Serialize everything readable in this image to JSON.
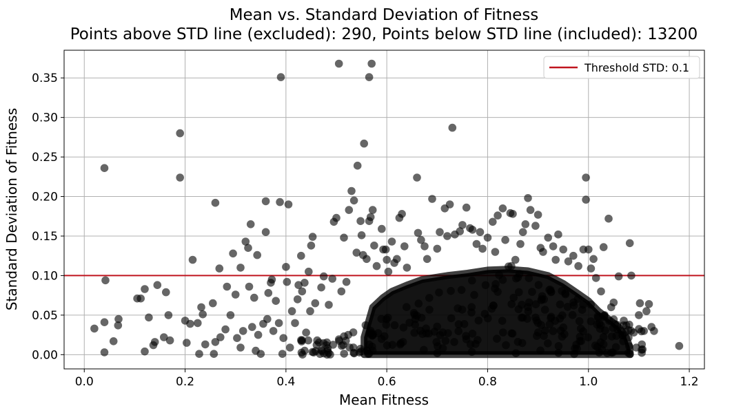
{
  "chart_data": {
    "type": "scatter",
    "title": "Mean vs. Standard Deviation of Fitness",
    "subtitle": "Points above STD line (excluded): 290, Points below STD line (included): 13200",
    "xlabel": "Mean Fitness",
    "ylabel": "Standard Deviation of Fitness",
    "xlim": [
      -0.04,
      1.23
    ],
    "ylim": [
      -0.018,
      0.385
    ],
    "x_ticks": [
      "0.0",
      "0.2",
      "0.4",
      "0.6",
      "0.8",
      "1.0",
      "1.2"
    ],
    "x_tick_values": [
      0.0,
      0.2,
      0.4,
      0.6,
      0.8,
      1.0,
      1.2
    ],
    "y_ticks": [
      "0.00",
      "0.05",
      "0.10",
      "0.15",
      "0.20",
      "0.25",
      "0.30",
      "0.35"
    ],
    "y_tick_values": [
      0.0,
      0.05,
      0.1,
      0.15,
      0.2,
      0.25,
      0.3,
      0.35
    ],
    "grid": true,
    "legend_position": "top-right",
    "threshold": {
      "label": "Threshold STD: 0.1",
      "value": 0.1,
      "color": "#c0141e"
    },
    "marker_color": "#000000",
    "marker_opacity": 0.6,
    "series": [
      {
        "points": [
          [
            0.02,
            0.033
          ],
          [
            0.04,
            0.003
          ],
          [
            0.04,
            0.041
          ],
          [
            0.042,
            0.094
          ],
          [
            0.04,
            0.236
          ],
          [
            0.058,
            0.017
          ],
          [
            0.067,
            0.037
          ],
          [
            0.068,
            0.045
          ],
          [
            0.105,
            0.071
          ],
          [
            0.112,
            0.071
          ],
          [
            0.12,
            0.083
          ],
          [
            0.12,
            0.004
          ],
          [
            0.128,
            0.047
          ],
          [
            0.137,
            0.012
          ],
          [
            0.14,
            0.016
          ],
          [
            0.145,
            0.088
          ],
          [
            0.158,
            0.022
          ],
          [
            0.162,
            0.079
          ],
          [
            0.167,
            0.05
          ],
          [
            0.17,
            0.018
          ],
          [
            0.19,
            0.224
          ],
          [
            0.19,
            0.28
          ],
          [
            0.2,
            0.043
          ],
          [
            0.203,
            0.015
          ],
          [
            0.21,
            0.039
          ],
          [
            0.215,
            0.12
          ],
          [
            0.225,
            0.04
          ],
          [
            0.228,
            0.001
          ],
          [
            0.232,
            0.06
          ],
          [
            0.235,
            0.051
          ],
          [
            0.24,
            0.013
          ],
          [
            0.255,
            0.065
          ],
          [
            0.257,
            0.001
          ],
          [
            0.26,
            0.192
          ],
          [
            0.26,
            0.016
          ],
          [
            0.268,
            0.109
          ],
          [
            0.27,
            0.022
          ],
          [
            0.28,
            0.032
          ],
          [
            0.283,
            0.086
          ],
          [
            0.29,
            0.05
          ],
          [
            0.295,
            0.128
          ],
          [
            0.3,
            0.076
          ],
          [
            0.303,
            0.021
          ],
          [
            0.31,
            0.009
          ],
          [
            0.31,
            0.11
          ],
          [
            0.315,
            0.03
          ],
          [
            0.32,
            0.143
          ],
          [
            0.325,
            0.135
          ],
          [
            0.327,
            0.086
          ],
          [
            0.33,
            0.165
          ],
          [
            0.333,
            0.035
          ],
          [
            0.337,
            0.072
          ],
          [
            0.34,
            0.005
          ],
          [
            0.343,
            0.126
          ],
          [
            0.345,
            0.025
          ],
          [
            0.35,
            0.001
          ],
          [
            0.355,
            0.039
          ],
          [
            0.36,
            0.194
          ],
          [
            0.36,
            0.155
          ],
          [
            0.363,
            0.045
          ],
          [
            0.365,
            0.078
          ],
          [
            0.37,
            0.091
          ],
          [
            0.372,
            0.095
          ],
          [
            0.375,
            0.03
          ],
          [
            0.38,
            0.068
          ],
          [
            0.386,
            0.04
          ],
          [
            0.39,
            0.351
          ],
          [
            0.388,
            0.193
          ],
          [
            0.393,
            0.001
          ],
          [
            0.395,
            0.021
          ],
          [
            0.4,
            0.111
          ],
          [
            0.402,
            0.092
          ],
          [
            0.405,
            0.19
          ],
          [
            0.408,
            0.009
          ],
          [
            0.412,
            0.055
          ],
          [
            0.418,
            0.04
          ],
          [
            0.423,
            0.07
          ],
          [
            0.425,
            0.088
          ],
          [
            0.43,
            0.125
          ],
          [
            0.432,
            0.08
          ],
          [
            0.437,
            0.091
          ],
          [
            0.44,
            0.028
          ],
          [
            0.445,
            0.105
          ],
          [
            0.448,
            0.055
          ],
          [
            0.45,
            0.138
          ],
          [
            0.453,
            0.149
          ],
          [
            0.458,
            0.065
          ],
          [
            0.462,
            0.018
          ],
          [
            0.47,
            0.085
          ],
          [
            0.475,
            0.099
          ],
          [
            0.48,
            0.012
          ],
          [
            0.485,
            0.063
          ],
          [
            0.492,
            0.096
          ],
          [
            0.495,
            0.168
          ],
          [
            0.5,
            0.173
          ],
          [
            0.505,
            0.368
          ],
          [
            0.51,
            0.08
          ],
          [
            0.515,
            0.148
          ],
          [
            0.52,
            0.092
          ],
          [
            0.525,
            0.183
          ],
          [
            0.53,
            0.207
          ],
          [
            0.535,
            0.195
          ],
          [
            0.54,
            0.129
          ],
          [
            0.542,
            0.239
          ],
          [
            0.548,
            0.169
          ],
          [
            0.55,
            0.151
          ],
          [
            0.553,
            0.126
          ],
          [
            0.555,
            0.267
          ],
          [
            0.56,
            0.121
          ],
          [
            0.565,
            0.351
          ],
          [
            0.565,
            0.169
          ],
          [
            0.568,
            0.174
          ],
          [
            0.57,
            0.368
          ],
          [
            0.572,
            0.183
          ],
          [
            0.575,
            0.138
          ],
          [
            0.58,
            0.112
          ],
          [
            0.59,
            0.159
          ],
          [
            0.593,
            0.133
          ],
          [
            0.598,
            0.133
          ],
          [
            0.6,
            0.12
          ],
          [
            0.603,
            0.105
          ],
          [
            0.61,
            0.143
          ],
          [
            0.615,
            0.116
          ],
          [
            0.62,
            0.121
          ],
          [
            0.625,
            0.173
          ],
          [
            0.63,
            0.178
          ],
          [
            0.635,
            0.137
          ],
          [
            0.64,
            0.11
          ],
          [
            0.66,
            0.224
          ],
          [
            0.662,
            0.154
          ],
          [
            0.668,
            0.145
          ],
          [
            0.675,
            0.137
          ],
          [
            0.68,
            0.121
          ],
          [
            0.69,
            0.197
          ],
          [
            0.7,
            0.134
          ],
          [
            0.705,
            0.155
          ],
          [
            0.715,
            0.185
          ],
          [
            0.72,
            0.15
          ],
          [
            0.725,
            0.19
          ],
          [
            0.73,
            0.287
          ],
          [
            0.735,
            0.152
          ],
          [
            0.745,
            0.156
          ],
          [
            0.75,
            0.164
          ],
          [
            0.758,
            0.186
          ],
          [
            0.765,
            0.16
          ],
          [
            0.77,
            0.158
          ],
          [
            0.778,
            0.14
          ],
          [
            0.785,
            0.155
          ],
          [
            0.79,
            0.134
          ],
          [
            0.8,
            0.148
          ],
          [
            0.81,
            0.168
          ],
          [
            0.815,
            0.13
          ],
          [
            0.82,
            0.176
          ],
          [
            0.83,
            0.185
          ],
          [
            0.835,
            0.145
          ],
          [
            0.845,
            0.179
          ],
          [
            0.85,
            0.178
          ],
          [
            0.855,
            0.12
          ],
          [
            0.865,
            0.14
          ],
          [
            0.87,
            0.155
          ],
          [
            0.875,
            0.165
          ],
          [
            0.88,
            0.198
          ],
          [
            0.885,
            0.183
          ],
          [
            0.895,
            0.163
          ],
          [
            0.9,
            0.177
          ],
          [
            0.905,
            0.135
          ],
          [
            0.91,
            0.13
          ],
          [
            0.92,
            0.148
          ],
          [
            0.93,
            0.137
          ],
          [
            0.935,
            0.12
          ],
          [
            0.94,
            0.152
          ],
          [
            0.95,
            0.133
          ],
          [
            0.96,
            0.118
          ],
          [
            0.97,
            0.125
          ],
          [
            0.98,
            0.112
          ],
          [
            0.995,
            0.224
          ],
          [
            0.995,
            0.196
          ],
          [
            0.99,
            0.133
          ],
          [
            1.0,
            0.133
          ],
          [
            1.005,
            0.109
          ],
          [
            1.01,
            0.121
          ],
          [
            1.015,
            0.097
          ],
          [
            1.025,
            0.08
          ],
          [
            1.03,
            0.136
          ],
          [
            1.04,
            0.172
          ],
          [
            1.045,
            0.06
          ],
          [
            1.05,
            0.066
          ],
          [
            1.06,
            0.099
          ],
          [
            1.065,
            0.03
          ],
          [
            1.07,
            0.043
          ],
          [
            1.075,
            0.037
          ],
          [
            1.082,
            0.141
          ],
          [
            1.085,
            0.1
          ],
          [
            1.09,
            0.028
          ],
          [
            1.095,
            0.009
          ],
          [
            1.1,
            0.05
          ],
          [
            1.102,
            0.065
          ],
          [
            1.11,
            0.03
          ],
          [
            1.115,
            0.055
          ],
          [
            1.12,
            0.064
          ],
          [
            1.125,
            0.035
          ],
          [
            1.13,
            0.03
          ],
          [
            1.18,
            0.011
          ]
        ]
      }
    ]
  }
}
